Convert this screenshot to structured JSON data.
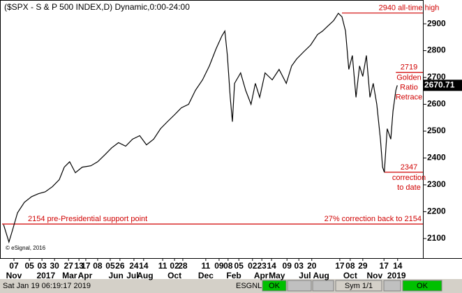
{
  "chart_data": {
    "type": "line",
    "title": "($SPX - S & P 500 INDEX,D) Dynamic,0:00-24:00",
    "copyright": "© eSignal, 2016",
    "color": "#000000",
    "annotation_color": "#d00000",
    "series": [
      {
        "name": "$SPX",
        "x": [
          0.4,
          1.9,
          2.9,
          4.3,
          6.2,
          8.2,
          10.1,
          12.0,
          14.0,
          15.9,
          17.3,
          18.8,
          20.4,
          22.3,
          24.7,
          26.6,
          28.6,
          30.5,
          32.4,
          34.4,
          36.3,
          38.3,
          40.2,
          42.2,
          44.1,
          46.0,
          48.0,
          49.9,
          51.9,
          53.8,
          55.8,
          57.7,
          59.6,
          61.2,
          62.0,
          62.7,
          63.5,
          64.1,
          64.7,
          66.4,
          67.8,
          69.3,
          70.5,
          71.7,
          73.2,
          75.2,
          77.1,
          79.1,
          80.6,
          82.0,
          83.9,
          85.9,
          87.8,
          89.2,
          90.7,
          92.3,
          93.6,
          94.6,
          95.6,
          96.5,
          97.5,
          98.5,
          99.5,
          100.4,
          101.4,
          102.4,
          103.3,
          104.3,
          105.3,
          105.9,
          106.4,
          107.2,
          108.2,
          108.8,
          109.6,
          110.0
        ],
        "values": [
          2152,
          2087,
          2131,
          2196,
          2235,
          2256,
          2267,
          2274,
          2293,
          2319,
          2366,
          2386,
          2345,
          2366,
          2371,
          2386,
          2412,
          2438,
          2457,
          2444,
          2470,
          2483,
          2449,
          2470,
          2509,
          2535,
          2561,
          2587,
          2600,
          2652,
          2691,
          2743,
          2808,
          2855,
          2873,
          2782,
          2626,
          2535,
          2678,
          2717,
          2652,
          2600,
          2678,
          2626,
          2717,
          2691,
          2730,
          2678,
          2743,
          2769,
          2795,
          2821,
          2860,
          2873,
          2892,
          2912,
          2939,
          2926,
          2873,
          2730,
          2782,
          2626,
          2743,
          2704,
          2782,
          2626,
          2678,
          2600,
          2470,
          2366,
          2347,
          2509,
          2470,
          2574,
          2652,
          2670.71
        ]
      }
    ],
    "xlim": [
      0,
      115
    ],
    "ylim": [
      2027,
      2986
    ],
    "yticks": [
      2100,
      2200,
      2300,
      2400,
      2500,
      2600,
      2700,
      2800,
      2900
    ],
    "xticks": [
      {
        "value": 3.3,
        "label": "07"
      },
      {
        "value": 7.6,
        "label": "05"
      },
      {
        "value": 11.1,
        "label": "03"
      },
      {
        "value": 14.6,
        "label": "30"
      },
      {
        "value": 18.5,
        "label": "27"
      },
      {
        "value": 21.4,
        "label": "13"
      },
      {
        "value": 23.3,
        "label": "17"
      },
      {
        "value": 26.6,
        "label": "08"
      },
      {
        "value": 30.1,
        "label": "05"
      },
      {
        "value": 32.8,
        "label": "26"
      },
      {
        "value": 36.7,
        "label": "24"
      },
      {
        "value": 39.4,
        "label": "14"
      },
      {
        "value": 44.7,
        "label": "11"
      },
      {
        "value": 48.0,
        "label": "02"
      },
      {
        "value": 50.3,
        "label": "28"
      },
      {
        "value": 56.7,
        "label": "11"
      },
      {
        "value": 60.4,
        "label": "09"
      },
      {
        "value": 62.9,
        "label": "08"
      },
      {
        "value": 65.9,
        "label": "05"
      },
      {
        "value": 69.7,
        "label": "02"
      },
      {
        "value": 72.3,
        "label": "23"
      },
      {
        "value": 75.0,
        "label": "14"
      },
      {
        "value": 79.3,
        "label": "09"
      },
      {
        "value": 82.6,
        "label": "03"
      },
      {
        "value": 86.2,
        "label": "20"
      },
      {
        "value": 94.0,
        "label": "17"
      },
      {
        "value": 96.9,
        "label": "08"
      },
      {
        "value": 100.4,
        "label": "29"
      },
      {
        "value": 106.3,
        "label": "17"
      },
      {
        "value": 110.1,
        "label": "14"
      }
    ],
    "month_ticks": [
      {
        "value": 3.3,
        "label": "Nov"
      },
      {
        "value": 12.2,
        "label": "2017"
      },
      {
        "value": 18.8,
        "label": "Mar"
      },
      {
        "value": 23.1,
        "label": "Apr"
      },
      {
        "value": 31.7,
        "label": "Jun"
      },
      {
        "value": 36.3,
        "label": "Jul"
      },
      {
        "value": 39.8,
        "label": "Aug"
      },
      {
        "value": 48.0,
        "label": "Oct"
      },
      {
        "value": 56.7,
        "label": "Dec"
      },
      {
        "value": 64.5,
        "label": "Feb"
      },
      {
        "value": 72.1,
        "label": "Apr"
      },
      {
        "value": 76.5,
        "label": "May"
      },
      {
        "value": 84.3,
        "label": "Jul"
      },
      {
        "value": 88.8,
        "label": "Aug"
      },
      {
        "value": 96.9,
        "label": "Oct"
      },
      {
        "value": 103.7,
        "label": "Nov"
      },
      {
        "value": 109.8,
        "label": "2019"
      }
    ],
    "levels": [
      {
        "value": 2940,
        "from": 94.6,
        "lines": [
          "2940 all-time high"
        ]
      },
      {
        "value": 2719,
        "from": 109.6,
        "lines": [
          "2719",
          "Golden",
          "Ratio",
          "Retrace"
        ]
      },
      {
        "value": 2347,
        "from": 106.4,
        "lines": [
          "2347",
          "correction",
          "to date"
        ]
      },
      {
        "value": 2154,
        "from": 0,
        "lines": [
          "27% correction back to 2154"
        ],
        "left_label": "2154 pre-Presidential support point",
        "anchor": "end"
      }
    ]
  },
  "status_bar": {
    "datetime": "Sat Jan 19 06:19:17 2019",
    "feed": "ESGNL:",
    "feed_status": "OK",
    "symbols": "Sym 1/1",
    "status": "OK"
  }
}
